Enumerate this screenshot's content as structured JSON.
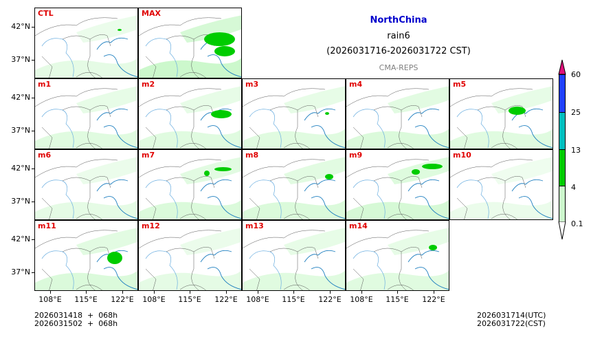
{
  "title": {
    "region": "NorthChina",
    "variable": "rain6",
    "period": "(2026031716-2026031722 CST)",
    "model": "CMA-REPS",
    "region_color": "#0000cc",
    "model_color": "#808080"
  },
  "panels": [
    {
      "label": "CTL",
      "heavy": [
        [
          120,
          30,
          6,
          3
        ]
      ],
      "light": 0.5
    },
    {
      "label": "MAX",
      "heavy": [
        [
          95,
          35,
          45,
          20
        ],
        [
          110,
          55,
          30,
          15
        ]
      ],
      "light": 1
    },
    {
      "label": "m1",
      "heavy": [],
      "light": 0.6
    },
    {
      "label": "m2",
      "heavy": [
        [
          105,
          45,
          30,
          12
        ]
      ],
      "light": 0.6
    },
    {
      "label": "m3",
      "heavy": [
        [
          120,
          48,
          6,
          4
        ]
      ],
      "light": 0.6
    },
    {
      "label": "m4",
      "heavy": [],
      "light": 0.7
    },
    {
      "label": "m5",
      "heavy": [
        [
          85,
          40,
          25,
          12
        ]
      ],
      "light": 0.6
    },
    {
      "label": "m6",
      "heavy": [],
      "light": 0.5
    },
    {
      "label": "m7",
      "heavy": [
        [
          95,
          30,
          8,
          8
        ],
        [
          110,
          25,
          25,
          6
        ]
      ],
      "light": 0.7
    },
    {
      "label": "m8",
      "heavy": [
        [
          120,
          35,
          12,
          8
        ]
      ],
      "light": 0.7
    },
    {
      "label": "m9",
      "heavy": [
        [
          95,
          28,
          12,
          8
        ],
        [
          110,
          20,
          30,
          8
        ]
      ],
      "light": 0.8
    },
    {
      "label": "m10",
      "heavy": [],
      "light": 0.4
    },
    {
      "label": "m11",
      "heavy": [
        [
          105,
          45,
          22,
          18
        ]
      ],
      "light": 0.7
    },
    {
      "label": "m12",
      "heavy": [],
      "light": 0.5
    },
    {
      "label": "m13",
      "heavy": [],
      "light": 0.6
    },
    {
      "label": "m14",
      "heavy": [
        [
          120,
          35,
          12,
          8
        ]
      ],
      "light": 0.6
    }
  ],
  "axes": {
    "yticks": [
      "42°N",
      "37°N"
    ],
    "xticks": [
      "108°E",
      "115°E",
      "122°E"
    ]
  },
  "colorbar": {
    "levels": [
      "0.1",
      "4",
      "13",
      "25",
      "60"
    ],
    "colors": [
      "#ccf8cc",
      "#00cc00",
      "#00bfbf",
      "#2040ff"
    ],
    "over_color": "#e0107a",
    "under_color": "#ffffff"
  },
  "footer": {
    "init_line1": "2026031418  +  068h",
    "init_line2": "2026031502  +  068h",
    "valid_utc": "2026031714(UTC)",
    "valid_cst": "2026031722(CST)"
  },
  "chart_data": {
    "type": "heatmap",
    "title": "NorthChina rain6 (2026031716-2026031722 CST)",
    "subtitle": "CMA-REPS",
    "panels": [
      "CTL",
      "MAX",
      "m1",
      "m2",
      "m3",
      "m4",
      "m5",
      "m6",
      "m7",
      "m8",
      "m9",
      "m10",
      "m11",
      "m12",
      "m13",
      "m14"
    ],
    "xlabel": "",
    "ylabel": "",
    "xticks": [
      "108°E",
      "115°E",
      "122°E"
    ],
    "yticks": [
      "42°N",
      "37°N"
    ],
    "colorbar_levels": [
      0.1,
      4,
      13,
      25,
      60
    ],
    "colorbar_colors": [
      "#ccf8cc",
      "#00cc00",
      "#00bfbf",
      "#2040ff"
    ],
    "extend": "both",
    "grid": false
  }
}
